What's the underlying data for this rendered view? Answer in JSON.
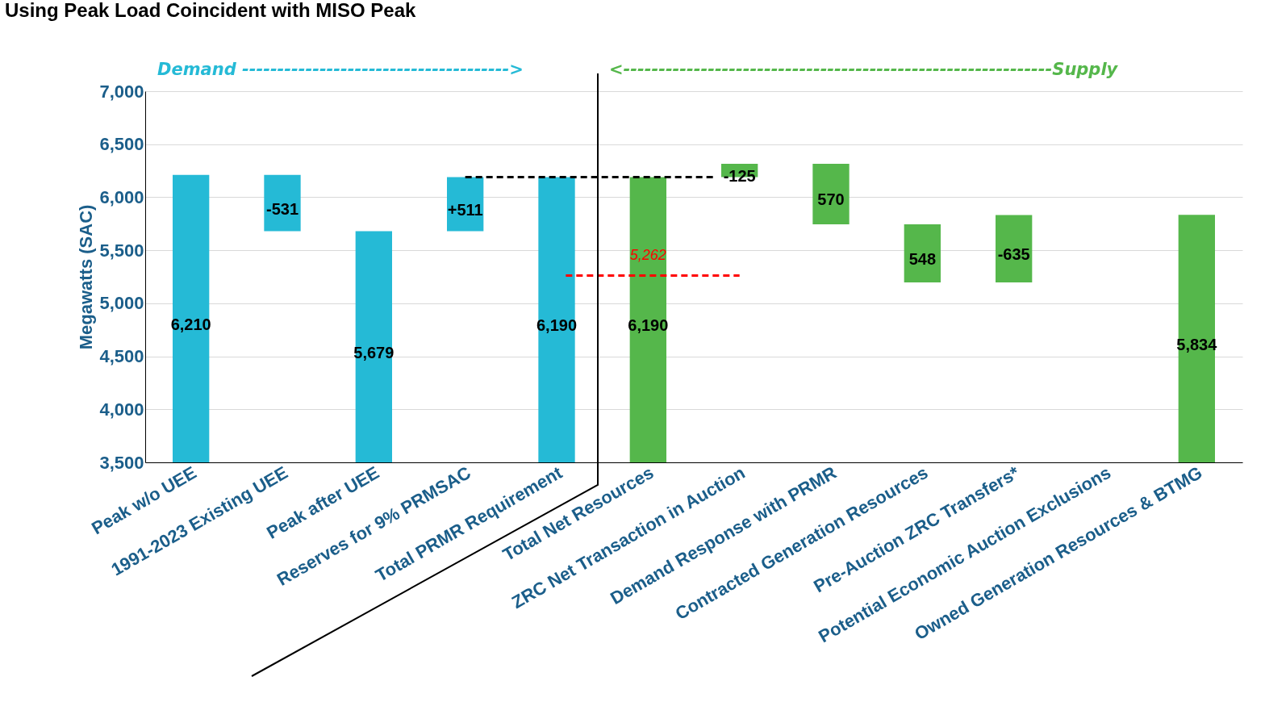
{
  "chart_data": {
    "type": "bar",
    "title": "Using Peak Load Coincident with MISO Peak",
    "ylabel": "Megawatts (SAC)",
    "categories": [
      "Peak w/o UEE",
      "1991-2023 Existing UEE",
      "Peak after UEE",
      "Reserves for 9% PRMSAC",
      "Total PRMR Requirement",
      "Total Net Resources",
      "ZRC Net Transaction in Auction",
      "Demand Response with PRMR",
      "Contracted Generation Resources",
      "Pre-Auction ZRC Transfers*",
      "Potential Economic Auction Exclusions",
      "Owned Generation Resources & BTMG"
    ],
    "values": [
      6210,
      -531,
      5679,
      511,
      6190,
      6190,
      -125,
      570,
      548,
      -635,
      null,
      5834
    ],
    "base": [
      null,
      6210,
      null,
      5679,
      null,
      null,
      6315,
      5745,
      5197,
      5832,
      null,
      null
    ],
    "colors": [
      "#25bad6",
      "#25bad6",
      "#25bad6",
      "#25bad6",
      "#25bad6",
      "#55b74b",
      "#55b74b",
      "#55b74b",
      "#55b74b",
      "#55b74b",
      "#55b74b",
      "#55b74b"
    ],
    "value_labels": [
      "6,210",
      "-531",
      "5,679",
      "+511",
      "6,190",
      "6,190",
      "-125",
      "570",
      "548",
      "-635",
      null,
      "5,834"
    ],
    "ylim": [
      3500,
      7000
    ],
    "yticks": [
      {
        "value": 3500,
        "label": "3,500"
      },
      {
        "value": 4000,
        "label": "4,000"
      },
      {
        "value": 4500,
        "label": "4,500"
      },
      {
        "value": 5000,
        "label": "5,000"
      },
      {
        "value": 5500,
        "label": "5,500"
      },
      {
        "value": 6000,
        "label": "6,000"
      },
      {
        "value": 6500,
        "label": "6,500"
      },
      {
        "value": 7000,
        "label": "7,000"
      }
    ],
    "ref_lines": [
      {
        "axis": "y",
        "value": 6190,
        "color": "#000000",
        "line_style": "dashed"
      },
      {
        "axis": "y",
        "value": 5262,
        "label": "5,262",
        "color": "#ff0000",
        "line_style": "dashed"
      }
    ],
    "annotations": [
      "Demand -------------------------------------->",
      "<-------------------------------------------------------------Supply"
    ],
    "grid": "y"
  }
}
